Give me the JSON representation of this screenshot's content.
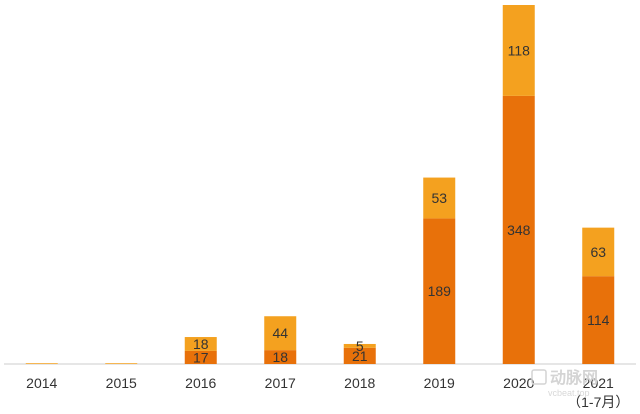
{
  "chart_data": {
    "type": "bar",
    "stacked": true,
    "categories": [
      "2014",
      "2015",
      "2016",
      "2017",
      "2018",
      "2019",
      "2020",
      "2021"
    ],
    "category_sublabels": [
      "",
      "",
      "",
      "",
      "",
      "",
      "",
      "（1-7月）"
    ],
    "series": [
      {
        "values": [
          0,
          0,
          17,
          18,
          21,
          189,
          348,
          114
        ],
        "color": "#E8710A"
      },
      {
        "values": [
          1,
          1,
          18,
          44,
          5,
          53,
          118,
          63
        ],
        "color": "#F4A11F"
      }
    ],
    "value_labels": [
      [
        "",
        "",
        "17",
        "18",
        "21",
        "189",
        "348",
        "114"
      ],
      [
        "",
        "",
        "18",
        "44",
        "5",
        "53",
        "118",
        "63"
      ]
    ],
    "title": "",
    "xlabel": "",
    "ylabel": "",
    "ylim": [
      0,
      466
    ],
    "grid": false,
    "legend": "none"
  },
  "watermark": {
    "logo_text": "动脉网",
    "site_text": "vcbeat.top"
  }
}
